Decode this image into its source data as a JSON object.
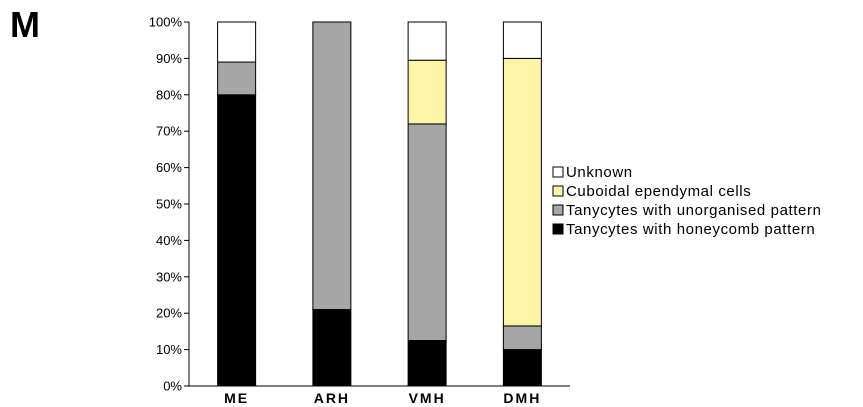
{
  "panel_label": "M",
  "chart_data": {
    "type": "bar",
    "stacked": true,
    "categories": [
      "ME",
      "ARH",
      "VMH",
      "DMH"
    ],
    "ylim": [
      0,
      100
    ],
    "yticks": [
      "0%",
      "10%",
      "20%",
      "30%",
      "40%",
      "50%",
      "60%",
      "70%",
      "80%",
      "90%",
      "100%"
    ],
    "grid": false,
    "legend_position": "right",
    "series": [
      {
        "name": "Tanycytes with honeycomb pattern",
        "color": "#000000",
        "values": [
          80,
          21,
          12.5,
          10
        ]
      },
      {
        "name": "Tanycytes with unorganised pattern",
        "color": "#a6a6a6",
        "values": [
          9,
          79,
          59.5,
          6.5
        ]
      },
      {
        "name": "Cuboidal ependymal cells",
        "color": "#fdf5a6",
        "values": [
          0,
          0,
          17.5,
          73.5
        ]
      },
      {
        "name": "Unknown",
        "color": "#ffffff",
        "values": [
          11,
          0,
          10.5,
          10
        ]
      }
    ],
    "legend_order": [
      "Unknown",
      "Cuboidal ependymal cells",
      "Tanycytes with unorganised pattern",
      "Tanycytes with honeycomb pattern"
    ]
  }
}
